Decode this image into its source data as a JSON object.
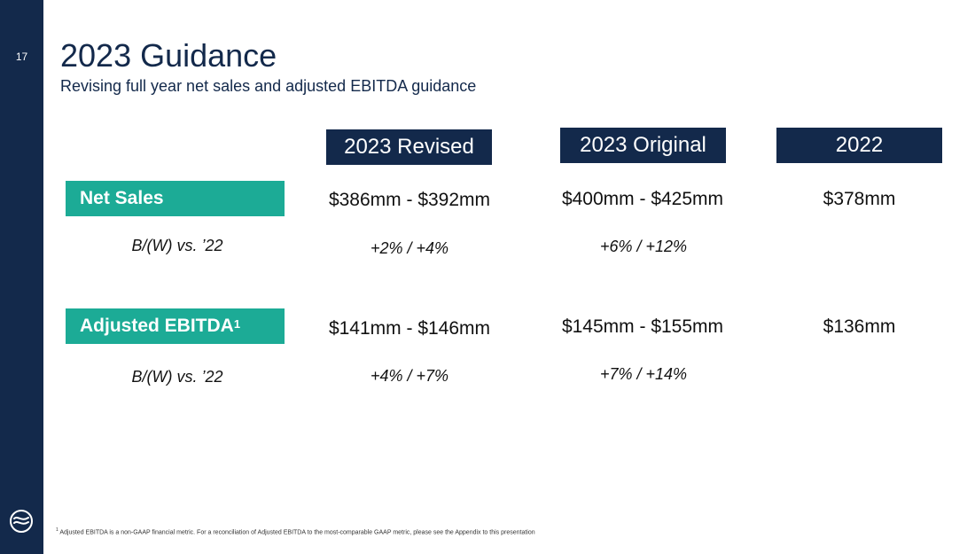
{
  "page_number": "17",
  "title": "2023 Guidance",
  "subtitle": "Revising full year net sales and adjusted EBITDA guidance",
  "columns": [
    "2023 Revised",
    "2023 Original",
    "2022"
  ],
  "rows": [
    {
      "label": "Net Sales",
      "label_sup": "",
      "values": [
        "$386mm - $392mm",
        "$400mm - $425mm",
        "$378mm"
      ],
      "bw_label": "B/(W) vs. ’22",
      "bw_values": [
        "+2% / +4%",
        "+6% / +12%"
      ]
    },
    {
      "label": "Adjusted EBITDA",
      "label_sup": "1",
      "values": [
        "$141mm - $146mm",
        "$145mm - $155mm",
        "$136mm"
      ],
      "bw_label": "B/(W) vs. ’22",
      "bw_values": [
        "+4% / +7%",
        "+7% / +14%"
      ]
    }
  ],
  "footnote": {
    "marker": "1",
    "text": "Adjusted EBITDA is a non-GAAP financial metric. For a reconciliation of Adjusted EBITDA to the most-comparable GAAP metric, please see the Appendix to this presentation"
  },
  "colors": {
    "navy": "#13294b",
    "teal": "#1cab96",
    "white": "#ffffff"
  },
  "icons": [
    "company-logo-icon"
  ]
}
